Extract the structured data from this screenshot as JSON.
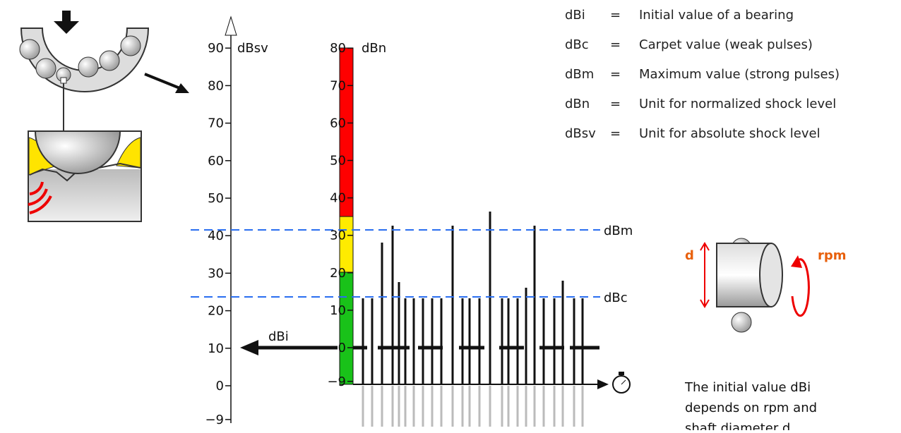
{
  "legend": [
    {
      "symbol": "dBi",
      "eq": "=",
      "text": "Initial value of a bearing"
    },
    {
      "symbol": "dBc",
      "eq": "=",
      "text": "Carpet value (weak pulses)"
    },
    {
      "symbol": "dBm",
      "eq": "=",
      "text": "Maximum value (strong pulses)"
    },
    {
      "symbol": "dBn",
      "eq": "=",
      "text": "Unit for normalized shock level"
    },
    {
      "symbol": "dBsv",
      "eq": "=",
      "text": "Unit for absolute shock level"
    }
  ],
  "dbsv_axis": {
    "label": "dBsv",
    "ticks": [
      {
        "value": -9,
        "label": "−9"
      },
      0,
      10,
      20,
      30,
      40,
      50,
      60,
      70,
      80,
      90
    ]
  },
  "dbn_axis": {
    "label": "dBn",
    "ticks": [
      {
        "value": -9,
        "label": "−9"
      },
      0,
      10,
      20,
      30,
      40,
      50,
      60,
      70,
      80
    ]
  },
  "labels": {
    "dbm": "dBm",
    "dbc": "dBc",
    "dbi": "dBi",
    "d": "d",
    "rpm": "rpm"
  },
  "caption": [
    "The initial value dBi",
    "depends on rpm and",
    "shaft diameter d."
  ]
}
